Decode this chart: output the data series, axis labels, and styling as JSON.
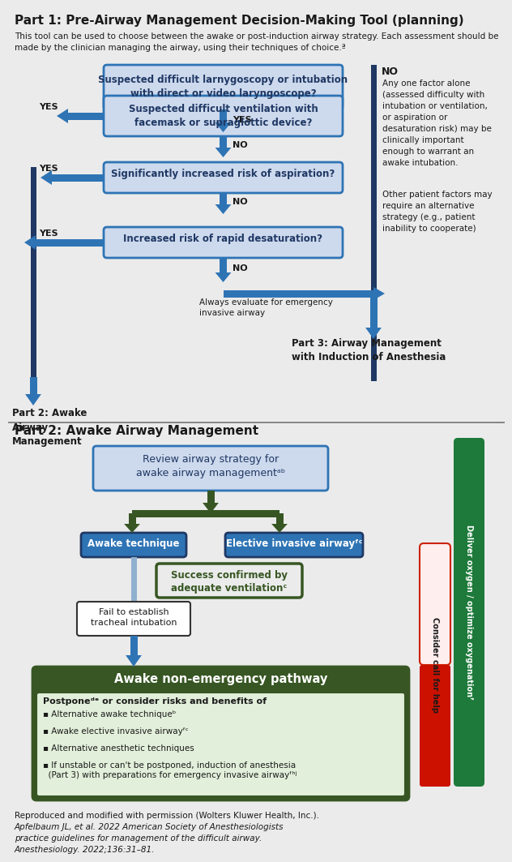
{
  "bg_color": "#ebebeb",
  "part1_title": "Part 1: Pre-Airway Management Decision-Making Tool (planning)",
  "part1_subtitle": "This tool can be used to choose between the awake or post-induction airway strategy. Each assessment should be\nmade by the clinician managing the airway, using their techniques of choice.ª",
  "part2_title": "Part 2: Awake Airway Management",
  "box_blue_fill": "#cdd9ed",
  "box_blue_border": "#2e74b5",
  "box_blue_text": "#1f3864",
  "box_blue_dark_fill": "#2e74b5",
  "box_blue_dark_border": "#1f3864",
  "arrow_blue": "#2e74b5",
  "arrow_green": "#375623",
  "sidebar_blue": "#1f3864",
  "green_dark": "#375623",
  "green_mid": "#4ea72e",
  "green_box_fill": "#375623",
  "green_light_fill": "#e2efda",
  "green_light_border": "#375623",
  "red_top": "#ffcccc",
  "red_bottom": "#cc0000",
  "text_dark": "#1a1a1a",
  "text_white": "#ffffff",
  "citation_line1": "Reproduced and modified with permission (Wolters Kluwer Health, Inc.).",
  "citation_rest": "Apfelbaum JL, et al. 2022 American Society of Anesthesiologists\npractice guidelines for management of the difficult airway.\nAnesthesiology. 2022;136:31–81."
}
